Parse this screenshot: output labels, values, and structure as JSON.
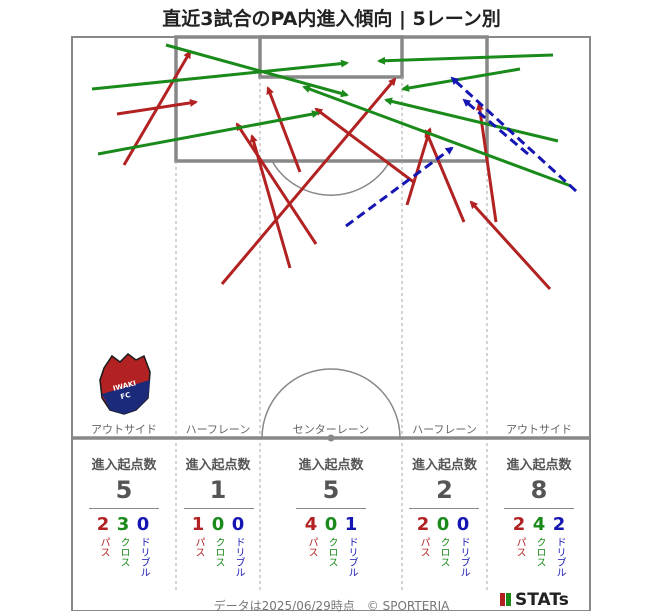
{
  "title": "直近3試合のPA内進入傾向 | 5レーン別",
  "footer": "データは2025/06/29時点　© SPORTERIA",
  "brand": "STATs",
  "lanes": [
    {
      "name": "アウトサイド",
      "header": "進入起点数",
      "total": "5",
      "breakdown": [
        {
          "value": "2",
          "label": "パス"
        },
        {
          "value": "3",
          "label": "クロス"
        },
        {
          "value": "0",
          "label": "ドリブル"
        }
      ]
    },
    {
      "name": "ハーフレーン",
      "header": "進入起点数",
      "total": "1",
      "breakdown": [
        {
          "value": "1",
          "label": "パス"
        },
        {
          "value": "0",
          "label": "クロス"
        },
        {
          "value": "0",
          "label": "ドリブル"
        }
      ]
    },
    {
      "name": "センターレーン",
      "header": "進入起点数",
      "total": "5",
      "breakdown": [
        {
          "value": "4",
          "label": "パス"
        },
        {
          "value": "0",
          "label": "クロス"
        },
        {
          "value": "1",
          "label": "ドリブル"
        }
      ]
    },
    {
      "name": "ハーフレーン",
      "header": "進入起点数",
      "total": "2",
      "breakdown": [
        {
          "value": "2",
          "label": "パス"
        },
        {
          "value": "0",
          "label": "クロス"
        },
        {
          "value": "0",
          "label": "ドリブル"
        }
      ]
    },
    {
      "name": "アウトサイド",
      "header": "進入起点数",
      "total": "8",
      "breakdown": [
        {
          "value": "2",
          "label": "パス"
        },
        {
          "value": "4",
          "label": "クロス"
        },
        {
          "value": "2",
          "label": "ドリブル"
        }
      ]
    }
  ],
  "colors": {
    "pass": "#b22222",
    "cross": "#1a8a1a",
    "dribble": "#1515b4"
  },
  "chart_data": {
    "type": "arrow-map",
    "legend": [
      "パス",
      "クロス",
      "ドリブル"
    ],
    "arrows": [
      {
        "kind": "pass",
        "from": [
          124,
          165
        ],
        "to": [
          190,
          52
        ]
      },
      {
        "kind": "pass",
        "from": [
          117,
          114
        ],
        "to": [
          196,
          102
        ]
      },
      {
        "kind": "pass",
        "from": [
          316,
          244
        ],
        "to": [
          237,
          124
        ]
      },
      {
        "kind": "pass",
        "from": [
          290,
          268
        ],
        "to": [
          252,
          136
        ]
      },
      {
        "kind": "pass",
        "from": [
          300,
          172
        ],
        "to": [
          268,
          88
        ]
      },
      {
        "kind": "pass",
        "from": [
          222,
          284
        ],
        "to": [
          395,
          79
        ]
      },
      {
        "kind": "pass",
        "from": [
          415,
          183
        ],
        "to": [
          316,
          109
        ]
      },
      {
        "kind": "pass",
        "from": [
          407,
          205
        ],
        "to": [
          430,
          129
        ]
      },
      {
        "kind": "pass",
        "from": [
          464,
          222
        ],
        "to": [
          426,
          131
        ]
      },
      {
        "kind": "pass",
        "from": [
          496,
          222
        ],
        "to": [
          479,
          104
        ]
      },
      {
        "kind": "pass",
        "from": [
          550,
          289
        ],
        "to": [
          471,
          202
        ]
      },
      {
        "kind": "cross",
        "from": [
          92,
          89
        ],
        "to": [
          347,
          63
        ]
      },
      {
        "kind": "cross",
        "from": [
          98,
          154
        ],
        "to": [
          318,
          113
        ]
      },
      {
        "kind": "cross",
        "from": [
          166,
          45
        ],
        "to": [
          347,
          95
        ]
      },
      {
        "kind": "cross",
        "from": [
          553,
          55
        ],
        "to": [
          379,
          61
        ]
      },
      {
        "kind": "cross",
        "from": [
          520,
          69
        ],
        "to": [
          403,
          89
        ]
      },
      {
        "kind": "cross",
        "from": [
          558,
          141
        ],
        "to": [
          386,
          100
        ]
      },
      {
        "kind": "cross",
        "from": [
          571,
          186
        ],
        "to": [
          304,
          87
        ]
      },
      {
        "kind": "dribble",
        "from": [
          346,
          226
        ],
        "to": [
          452,
          148
        ]
      },
      {
        "kind": "dribble",
        "from": [
          576,
          191
        ],
        "to": [
          452,
          78
        ]
      },
      {
        "kind": "dribble",
        "from": [
          528,
          154
        ],
        "to": [
          464,
          100
        ]
      }
    ]
  }
}
